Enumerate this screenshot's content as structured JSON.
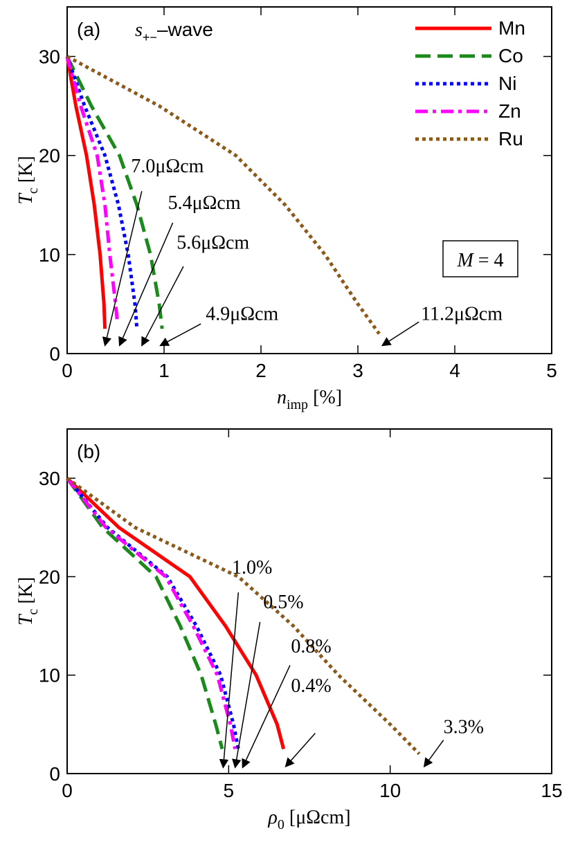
{
  "chart_data": [
    {
      "type": "line",
      "panel_label": "(a)",
      "wave_label": {
        "symbol": "s",
        "subscript": "+−",
        "suffix": "–wave"
      },
      "box_label": {
        "symbol": "M",
        "rest": " = 4"
      },
      "xlabel": {
        "symbol": "n",
        "subscript": "imp",
        "unit": " [%]"
      },
      "ylabel": {
        "symbol": "T",
        "subscript": "c",
        "unit": " [K]"
      },
      "xlim": [
        0,
        5
      ],
      "xticks": [
        0,
        1,
        2,
        3,
        4,
        5
      ],
      "ylim": [
        0,
        35
      ],
      "yticks": [
        0,
        10,
        20,
        30
      ],
      "legend": "top-right",
      "series": [
        {
          "name": "Mn",
          "color": "#ff0000",
          "dash": "solid",
          "x": [
            0,
            0.09,
            0.2,
            0.28,
            0.34,
            0.38,
            0.39
          ],
          "values": [
            30,
            25,
            20,
            15,
            10,
            5,
            2.5
          ]
        },
        {
          "name": "Co",
          "color": "#1a8a1a",
          "dash": "dashed",
          "x": [
            0,
            0.25,
            0.54,
            0.72,
            0.86,
            0.95,
            0.98
          ],
          "values": [
            30,
            25,
            20,
            15,
            10,
            5,
            2.5
          ]
        },
        {
          "name": "Ni",
          "color": "#0000ff",
          "dash": "dotted",
          "x": [
            0,
            0.18,
            0.39,
            0.53,
            0.63,
            0.7,
            0.72
          ],
          "values": [
            30,
            25,
            20,
            15,
            10,
            5,
            2.5
          ]
        },
        {
          "name": "Zn",
          "color": "#ff00ff",
          "dash": "dashdot",
          "x": [
            0,
            0.14,
            0.31,
            0.39,
            0.44,
            0.5,
            0.52
          ],
          "values": [
            30,
            25,
            20,
            15,
            10,
            5,
            3
          ]
        },
        {
          "name": "Ru",
          "color": "#8b5a1b",
          "dash": "dotted",
          "x": [
            0,
            0.95,
            1.74,
            2.25,
            2.66,
            3.0,
            3.22
          ],
          "values": [
            30,
            25,
            20,
            15,
            10,
            5,
            2
          ]
        }
      ],
      "annotations": [
        "7.0μΩcm",
        "5.4μΩcm",
        "5.6μΩcm",
        "4.9μΩcm",
        "11.2μΩcm"
      ]
    },
    {
      "type": "line",
      "panel_label": "(b)",
      "xlabel": {
        "symbol": "ρ",
        "subscript": "0",
        "unit": " [μΩcm]"
      },
      "ylabel": {
        "symbol": "T",
        "subscript": "c",
        "unit": " [K]"
      },
      "xlim": [
        0,
        15
      ],
      "xticks": [
        0,
        5,
        10,
        15
      ],
      "ylim": [
        0,
        35
      ],
      "yticks": [
        0,
        10,
        20,
        30
      ],
      "series": [
        {
          "name": "Mn",
          "color": "#ff0000",
          "dash": "solid",
          "x": [
            0,
            1.6,
            3.8,
            4.9,
            5.85,
            6.5,
            6.7
          ],
          "values": [
            30,
            25,
            20,
            15,
            10,
            5,
            2.5
          ]
        },
        {
          "name": "Co",
          "color": "#1a8a1a",
          "dash": "dashed",
          "x": [
            0,
            1.1,
            2.75,
            3.5,
            4.15,
            4.6,
            4.8
          ],
          "values": [
            30,
            25,
            20,
            15,
            10,
            5,
            2.5
          ]
        },
        {
          "name": "Ni",
          "color": "#0000ff",
          "dash": "dotted",
          "x": [
            0,
            1.25,
            3.1,
            4.0,
            4.75,
            5.15,
            5.3
          ],
          "values": [
            30,
            25,
            20,
            15,
            10,
            5,
            2.5
          ]
        },
        {
          "name": "Zn",
          "color": "#ff00ff",
          "dash": "dashdot",
          "x": [
            0,
            1.2,
            3.05,
            3.9,
            4.65,
            5.05,
            5.2
          ],
          "values": [
            30,
            25,
            20,
            15,
            10,
            5,
            2.5
          ]
        },
        {
          "name": "Ru",
          "color": "#8b5a1b",
          "dash": "dotted",
          "x": [
            0,
            2.1,
            5.3,
            7.0,
            8.4,
            10.0,
            10.9
          ],
          "values": [
            30,
            25,
            20,
            15,
            10,
            5,
            2
          ]
        }
      ],
      "annotations": [
        "1.0%",
        "0.5%",
        "0.8%",
        "0.4%",
        "3.3%"
      ]
    }
  ]
}
